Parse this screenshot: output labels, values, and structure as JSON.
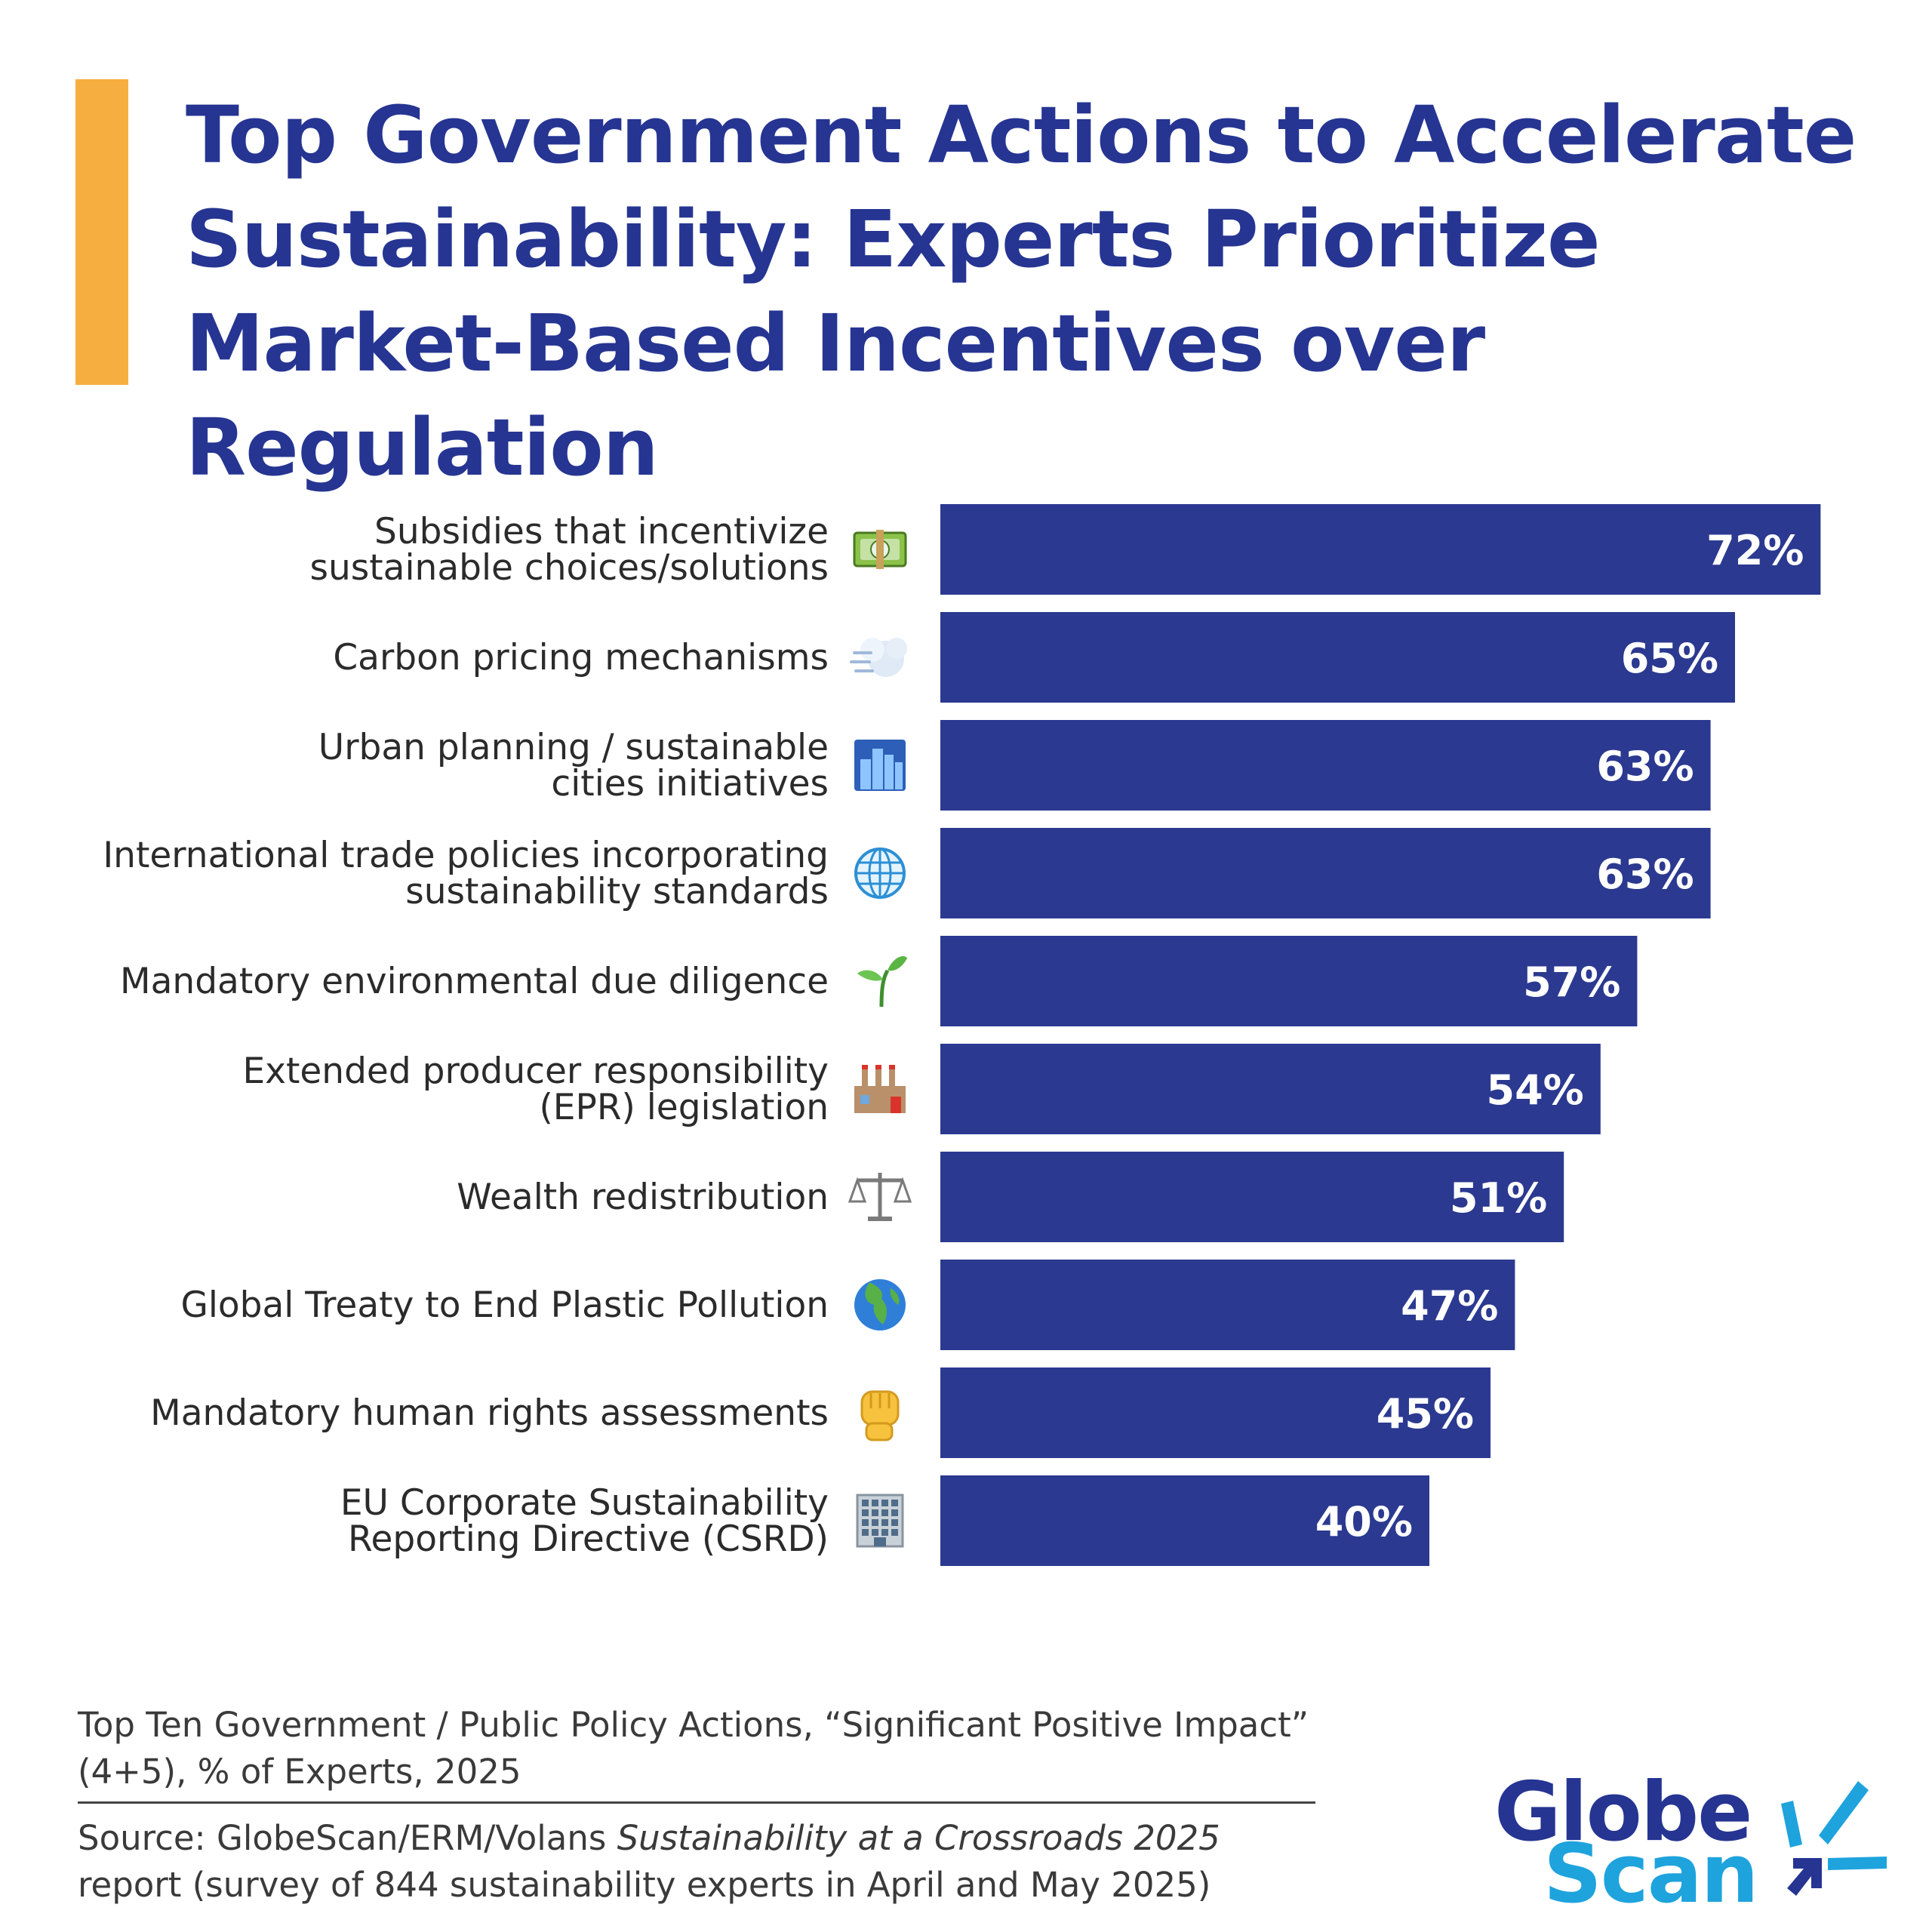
{
  "title": "Top Government Actions to Accelerate Sustainability: Experts Prioritize Market-Based Incentives over Regulation",
  "colors": {
    "accent": "#F6AE40",
    "bar": "#2B3990",
    "title": "#263592",
    "logo_dark": "#263592",
    "logo_light": "#1EA3DD"
  },
  "chart_data": {
    "type": "bar",
    "orientation": "horizontal",
    "xlim": [
      0,
      100
    ],
    "grid": false,
    "categories": [
      {
        "label_lines": [
          "Subsidies that incentivize",
          "sustainable choices/solutions"
        ],
        "icon": "money-icon",
        "value": 72,
        "value_label": "72%"
      },
      {
        "label_lines": [
          "Carbon pricing mechanisms"
        ],
        "icon": "dash-wind-icon",
        "value": 65,
        "value_label": "65%"
      },
      {
        "label_lines": [
          "Urban planning / sustainable",
          "cities initiatives"
        ],
        "icon": "city-icon",
        "value": 63,
        "value_label": "63%"
      },
      {
        "label_lines": [
          "International trade policies incorporating",
          "sustainability standards"
        ],
        "icon": "globe-meridians-icon",
        "value": 63,
        "value_label": "63%"
      },
      {
        "label_lines": [
          "Mandatory environmental due diligence"
        ],
        "icon": "seedling-icon",
        "value": 57,
        "value_label": "57%"
      },
      {
        "label_lines": [
          "Extended producer responsibility",
          "(EPR) legislation"
        ],
        "icon": "factory-icon",
        "value": 54,
        "value_label": "54%"
      },
      {
        "label_lines": [
          "Wealth redistribution"
        ],
        "icon": "scales-icon",
        "value": 51,
        "value_label": "51%"
      },
      {
        "label_lines": [
          "Global Treaty to End Plastic Pollution"
        ],
        "icon": "earth-globe-icon",
        "value": 47,
        "value_label": "47%"
      },
      {
        "label_lines": [
          "Mandatory human rights assessments"
        ],
        "icon": "raised-fist-icon",
        "value": 45,
        "value_label": "45%"
      },
      {
        "label_lines": [
          "EU Corporate Sustainability",
          "Reporting Directive (CSRD)"
        ],
        "icon": "office-building-icon",
        "value": 40,
        "value_label": "40%"
      }
    ]
  },
  "footer": {
    "note": "Top Ten Government / Public Policy Actions, “Significant Positive Impact” (4+5), % of Experts, 2025",
    "source_prefix": "Source: GlobeScan/ERM/Volans ",
    "source_title": "Sustainability at a Crossroads 2025",
    "source_suffix": " report (survey of 844 sustainability experts in April and May 2025)"
  },
  "logo": {
    "line1": "Globe",
    "line2": "Scan"
  }
}
